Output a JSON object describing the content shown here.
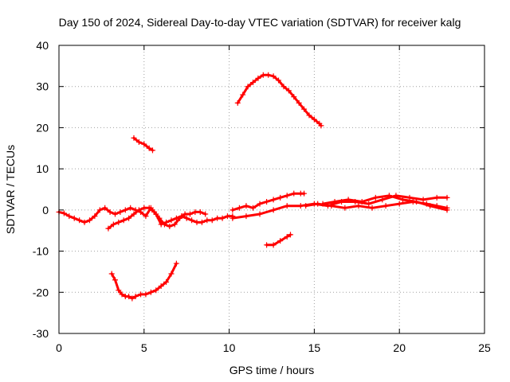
{
  "chart_data": {
    "type": "scatter",
    "title": "Day 150 of 2024, Sidereal Day-to-day VTEC variation (SDTVAR) for receiver kalg",
    "xlabel": "GPS time / hours",
    "ylabel": "SDTVAR / TECUs",
    "xlim": [
      0,
      25
    ],
    "ylim": [
      -30,
      40
    ],
    "xticks": [
      0,
      5,
      10,
      15,
      20,
      25
    ],
    "yticks": [
      -30,
      -20,
      -10,
      0,
      10,
      20,
      30,
      40
    ],
    "grid": true,
    "color": "#ff0000",
    "marker": "plus",
    "series": [
      {
        "name": "near-zero early A",
        "x": [
          0.0,
          0.3,
          0.6,
          0.9,
          1.2,
          1.5,
          1.8,
          2.1,
          2.4,
          2.7,
          3.0,
          3.3,
          3.6,
          3.9,
          4.2,
          4.5,
          4.8,
          5.1,
          5.4,
          5.7,
          6.0,
          6.3,
          6.6,
          6.9,
          7.2,
          7.5,
          7.8,
          8.1,
          8.4,
          8.7,
          9.0,
          9.3,
          9.6,
          9.9,
          10.2
        ],
        "y": [
          -0.5,
          -0.8,
          -1.5,
          -2.0,
          -2.5,
          -3.0,
          -2.5,
          -1.5,
          0.0,
          0.5,
          -0.5,
          -1.0,
          -0.5,
          0.0,
          0.5,
          0.0,
          -0.5,
          -1.5,
          0.5,
          -1.0,
          -3.5,
          -3.0,
          -2.5,
          -2.0,
          -1.5,
          -2.0,
          -2.5,
          -3.0,
          -3.0,
          -2.5,
          -2.5,
          -2.0,
          -2.0,
          -1.5,
          -1.5
        ]
      },
      {
        "name": "near-zero early B",
        "x": [
          2.9,
          3.2,
          3.5,
          3.8,
          4.1,
          4.4,
          4.7,
          5.0,
          5.3,
          5.6,
          5.9,
          6.2,
          6.5,
          6.8,
          7.1,
          7.4,
          7.7,
          8.0,
          8.3,
          8.6
        ],
        "y": [
          -4.5,
          -3.5,
          -3.0,
          -2.5,
          -2.0,
          -1.0,
          0.0,
          0.5,
          0.5,
          -0.5,
          -2.0,
          -3.5,
          -4.0,
          -3.5,
          -2.0,
          -1.0,
          -1.0,
          -0.5,
          -0.5,
          -1.0
        ]
      },
      {
        "name": "near-zero rising upper",
        "x": [
          10.2,
          10.6,
          11.0,
          11.4,
          11.8,
          12.2,
          12.6,
          13.0,
          13.4,
          13.8,
          14.2,
          14.4
        ],
        "y": [
          0.0,
          0.5,
          1.0,
          0.5,
          1.5,
          2.0,
          2.5,
          3.0,
          3.5,
          4.0,
          4.0,
          4.0
        ]
      },
      {
        "name": "near-zero long A",
        "x": [
          10.2,
          11.0,
          11.8,
          12.6,
          13.4,
          14.2,
          15.0,
          15.8,
          16.6,
          17.4,
          18.2,
          19.0,
          19.8,
          20.6,
          21.4,
          22.2,
          22.8
        ],
        "y": [
          -2.0,
          -1.5,
          -1.0,
          0.0,
          1.0,
          1.0,
          1.5,
          1.0,
          2.0,
          2.0,
          1.5,
          2.5,
          3.5,
          3.0,
          2.5,
          3.0,
          3.0
        ]
      },
      {
        "name": "near-zero long B",
        "x": [
          14.5,
          15.2,
          16.0,
          16.8,
          17.6,
          18.4,
          19.2,
          20.0,
          20.8,
          21.6,
          22.2,
          22.8
        ],
        "y": [
          1.0,
          1.5,
          1.0,
          0.5,
          1.0,
          0.5,
          1.0,
          1.5,
          2.0,
          1.5,
          1.0,
          0.5
        ]
      },
      {
        "name": "near-zero long C",
        "x": [
          15.5,
          16.2,
          17.0,
          17.8,
          18.6,
          19.4,
          20.2,
          21.0,
          21.8,
          22.8
        ],
        "y": [
          1.5,
          2.0,
          2.5,
          2.0,
          3.0,
          3.5,
          2.5,
          2.0,
          1.0,
          0.0
        ]
      },
      {
        "name": "large positive arc",
        "x": [
          10.5,
          10.8,
          11.1,
          11.4,
          11.7,
          12.0,
          12.3,
          12.6,
          12.9,
          13.2,
          13.5,
          13.8,
          14.1,
          14.4,
          14.7,
          15.0,
          15.3,
          15.4
        ],
        "y": [
          26.0,
          28.0,
          30.0,
          31.0,
          32.0,
          32.8,
          32.8,
          32.5,
          31.5,
          30.0,
          29.0,
          27.5,
          26.0,
          24.5,
          23.0,
          22.0,
          21.0,
          20.5
        ]
      },
      {
        "name": "short positive segment",
        "x": [
          4.4,
          4.7,
          5.0,
          5.3,
          5.5
        ],
        "y": [
          17.5,
          16.5,
          16.0,
          15.0,
          14.5
        ]
      },
      {
        "name": "short negative segment",
        "x": [
          12.2,
          12.6,
          13.0,
          13.4,
          13.6
        ],
        "y": [
          -8.5,
          -8.5,
          -7.5,
          -6.5,
          -6.0
        ]
      },
      {
        "name": "negative bowl",
        "x": [
          3.1,
          3.3,
          3.5,
          3.7,
          3.9,
          4.1,
          4.3,
          4.5,
          4.8,
          5.1,
          5.4,
          5.7,
          6.0,
          6.3,
          6.6,
          6.9
        ],
        "y": [
          -15.5,
          -17.0,
          -19.5,
          -20.5,
          -21.0,
          -21.0,
          -21.5,
          -21.0,
          -20.5,
          -20.5,
          -20.0,
          -19.5,
          -18.5,
          -17.5,
          -15.5,
          -13.0
        ]
      }
    ]
  }
}
